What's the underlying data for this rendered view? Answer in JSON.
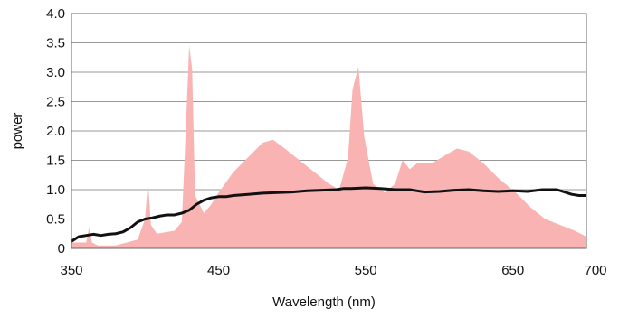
{
  "chart_data": {
    "type": "area",
    "title": "",
    "xlabel": "Wavelength (nm)",
    "ylabel": "power",
    "xlim": [
      350,
      700
    ],
    "ylim": [
      0,
      4.0
    ],
    "grid": true,
    "legend": "none",
    "x_ticks": [
      350,
      450,
      550,
      650,
      700
    ],
    "x_tick_labels": [
      "350",
      "450",
      "550",
      "650",
      "700"
    ],
    "y_ticks": [
      0,
      0.5,
      1.0,
      1.5,
      2.0,
      2.5,
      3.0,
      3.5,
      4.0
    ],
    "y_tick_labels": [
      "0",
      "0.5",
      "1.0",
      "1.5",
      "2.0",
      "2.5",
      "3.0",
      "3.5",
      "4.0"
    ],
    "colors": {
      "area": "#f9b3b3",
      "line": "#111111",
      "grid": "#999999",
      "frame": "#666666"
    },
    "series": [
      {
        "kind": "area",
        "x": [
          350,
          360,
          362,
          364,
          368,
          380,
          395,
          400,
          402,
          404,
          408,
          420,
          425,
          427,
          430,
          432,
          434,
          440,
          445,
          450,
          460,
          470,
          480,
          487,
          495,
          505,
          515,
          525,
          532,
          538,
          541,
          545,
          549,
          555,
          563,
          570,
          575,
          580,
          585,
          595,
          605,
          612,
          620,
          630,
          640,
          652,
          662,
          672,
          682,
          692,
          700
        ],
        "y": [
          0.1,
          0.1,
          0.35,
          0.1,
          0.05,
          0.05,
          0.15,
          0.5,
          1.15,
          0.4,
          0.25,
          0.3,
          0.45,
          1.6,
          3.45,
          3.05,
          0.9,
          0.6,
          0.75,
          0.95,
          1.3,
          1.55,
          1.8,
          1.85,
          1.7,
          1.5,
          1.3,
          1.1,
          1.0,
          1.55,
          2.7,
          3.1,
          1.9,
          1.1,
          0.95,
          1.1,
          1.5,
          1.35,
          1.45,
          1.45,
          1.6,
          1.7,
          1.65,
          1.45,
          1.2,
          0.95,
          0.7,
          0.5,
          0.4,
          0.3,
          0.2
        ]
      },
      {
        "kind": "line",
        "x": [
          350,
          355,
          360,
          365,
          370,
          375,
          380,
          385,
          390,
          395,
          400,
          405,
          410,
          415,
          420,
          425,
          430,
          435,
          440,
          445,
          450,
          455,
          460,
          470,
          480,
          490,
          500,
          510,
          520,
          530,
          535,
          540,
          550,
          560,
          570,
          580,
          585,
          590,
          600,
          610,
          620,
          630,
          640,
          650,
          660,
          670,
          680,
          690,
          695,
          700
        ],
        "y": [
          0.12,
          0.2,
          0.22,
          0.24,
          0.22,
          0.24,
          0.25,
          0.28,
          0.35,
          0.45,
          0.5,
          0.52,
          0.55,
          0.57,
          0.57,
          0.6,
          0.65,
          0.75,
          0.82,
          0.86,
          0.88,
          0.88,
          0.9,
          0.92,
          0.94,
          0.95,
          0.96,
          0.98,
          0.99,
          1.0,
          1.02,
          1.02,
          1.03,
          1.02,
          1.0,
          1.0,
          0.98,
          0.96,
          0.97,
          0.99,
          1.0,
          0.98,
          0.97,
          0.98,
          0.97,
          1.0,
          1.0,
          0.92,
          0.9,
          0.9
        ]
      }
    ]
  }
}
